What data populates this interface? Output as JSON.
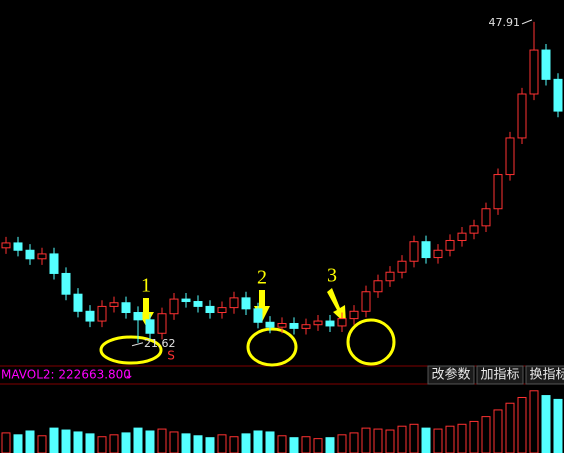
{
  "chart_data": {
    "type": "candlestick",
    "open": [
      29.4,
      29.8,
      29.2,
      28.5,
      28.9,
      27.3,
      25.6,
      24.2,
      23.4,
      24.6,
      24.9,
      24.1,
      23.5,
      22.4,
      24.0,
      25.2,
      25.0,
      24.6,
      24.1,
      24.5,
      25.3,
      24.4,
      23.3,
      22.9,
      23.2,
      22.8,
      23.1,
      23.4,
      23.0,
      23.6,
      24.2,
      25.8,
      26.7,
      27.4,
      28.3,
      29.9,
      28.6,
      29.2,
      30.0,
      30.6,
      31.2,
      32.6,
      35.4,
      38.4,
      42.0,
      45.6,
      43.2
    ],
    "high": [
      30.3,
      30.3,
      29.7,
      29.4,
      29.4,
      27.8,
      26.1,
      24.7,
      25.1,
      25.4,
      25.4,
      24.6,
      24.0,
      24.5,
      25.7,
      25.7,
      25.5,
      25.1,
      25.0,
      25.8,
      25.8,
      24.9,
      23.8,
      23.7,
      23.7,
      23.6,
      23.9,
      23.9,
      24.1,
      24.7,
      26.3,
      27.2,
      27.9,
      28.8,
      30.4,
      30.4,
      29.7,
      30.5,
      31.1,
      31.7,
      33.1,
      35.9,
      38.9,
      42.5,
      47.91,
      46.1,
      43.7
    ],
    "low": [
      28.9,
      28.7,
      28.0,
      28.0,
      26.8,
      25.1,
      23.7,
      22.9,
      22.9,
      24.1,
      23.6,
      21.62,
      21.9,
      21.9,
      23.5,
      24.5,
      24.1,
      23.6,
      23.6,
      24.0,
      23.9,
      22.8,
      22.4,
      22.4,
      22.3,
      22.3,
      22.6,
      22.5,
      22.5,
      23.1,
      23.7,
      25.3,
      26.2,
      26.9,
      27.8,
      28.1,
      28.1,
      28.7,
      29.5,
      30.1,
      30.7,
      32.1,
      34.9,
      37.9,
      41.5,
      42.7,
      40.1
    ],
    "close": [
      29.8,
      29.2,
      28.5,
      28.9,
      27.3,
      25.6,
      24.2,
      23.4,
      24.6,
      24.9,
      24.1,
      23.5,
      22.4,
      24.0,
      25.2,
      25.0,
      24.6,
      24.1,
      24.5,
      25.3,
      24.4,
      23.3,
      22.9,
      23.2,
      22.8,
      23.1,
      23.4,
      23.0,
      23.6,
      24.2,
      25.8,
      26.7,
      27.4,
      28.3,
      29.9,
      28.6,
      29.2,
      30.0,
      30.6,
      31.2,
      32.6,
      35.4,
      38.4,
      42.0,
      45.6,
      43.2,
      40.6
    ],
    "volume": [
      210000,
      190000,
      230000,
      180000,
      260000,
      240000,
      220000,
      200000,
      170000,
      190000,
      210000,
      260000,
      230000,
      250000,
      220000,
      200000,
      180000,
      160000,
      190000,
      170000,
      200000,
      230000,
      220000,
      180000,
      160000,
      170000,
      150000,
      160000,
      190000,
      210000,
      260000,
      250000,
      240000,
      280000,
      300000,
      260000,
      250000,
      280000,
      300000,
      330000,
      380000,
      450000,
      520000,
      580000,
      650000,
      600000,
      560000
    ],
    "ylim": [
      19.8,
      49.7
    ],
    "vol_ylim": [
      0,
      700000
    ],
    "up_color": "#ff3232",
    "down_color": "#54ffff",
    "annotations": [
      "1",
      "2",
      "3"
    ],
    "signal": "S",
    "indicator_label": "MAVOL2: 222663.800",
    "indicator_arrow": "↓",
    "buttons": [
      "改参数",
      "加指标",
      "换指标"
    ]
  }
}
